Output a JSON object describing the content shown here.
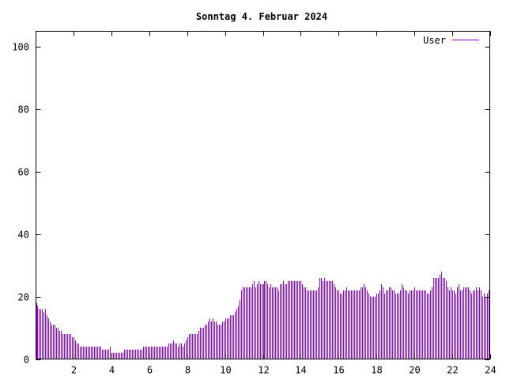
{
  "chart_data": {
    "type": "bar",
    "title": "Sonntag 4. Februar 2024",
    "xlabel": "",
    "ylabel": "",
    "xlim": [
      0,
      24
    ],
    "ylim": [
      0,
      105
    ],
    "x_ticks": [
      2,
      4,
      6,
      8,
      10,
      12,
      14,
      16,
      18,
      20,
      22,
      24
    ],
    "x_tick_labels": [
      "2",
      "4",
      "6",
      "8",
      "10",
      "12",
      "14",
      "16",
      "18",
      "20",
      "22",
      "24"
    ],
    "y_ticks": [
      0,
      20,
      40,
      60,
      80,
      100
    ],
    "y_tick_labels": [
      "0",
      "20",
      "40",
      "60",
      "80",
      "100"
    ],
    "grid": false,
    "legend": "top-right",
    "series": [
      {
        "name": "User",
        "color": "#9400d3",
        "step_minutes": 5,
        "values": [
          18,
          17,
          16,
          16,
          16,
          15,
          16,
          14,
          13,
          12,
          11,
          11,
          11,
          10,
          10,
          9,
          9,
          8,
          8,
          8,
          8,
          8,
          8,
          7,
          7,
          6,
          5,
          5,
          4,
          4,
          4,
          4,
          4,
          4,
          4,
          4,
          4,
          4,
          4,
          4,
          4,
          4,
          3,
          3,
          3,
          3,
          3,
          4,
          2,
          2,
          2,
          2,
          2,
          2,
          2,
          2,
          3,
          3,
          3,
          3,
          3,
          3,
          3,
          3,
          3,
          3,
          3,
          3,
          4,
          4,
          4,
          4,
          4,
          4,
          4,
          4,
          4,
          4,
          4,
          4,
          4,
          4,
          4,
          4,
          5,
          5,
          5,
          6,
          5,
          5,
          4,
          5,
          5,
          4,
          5,
          6,
          7,
          8,
          8,
          8,
          8,
          8,
          8,
          9,
          10,
          10,
          10,
          11,
          11,
          12,
          13,
          12,
          13,
          12,
          12,
          11,
          11,
          11,
          12,
          12,
          13,
          13,
          13,
          14,
          14,
          14,
          15,
          16,
          17,
          19,
          22,
          23,
          23,
          23,
          23,
          23,
          23,
          24,
          25,
          23,
          24,
          25,
          24,
          24,
          24,
          25,
          25,
          24,
          23,
          24,
          23,
          23,
          23,
          23,
          22,
          24,
          24,
          25,
          24,
          24,
          25,
          25,
          25,
          25,
          25,
          25,
          25,
          25,
          25,
          24,
          23,
          23,
          22,
          22,
          22,
          22,
          22,
          22,
          22,
          23,
          26,
          26,
          25,
          26,
          25,
          25,
          25,
          25,
          25,
          24,
          23,
          22,
          22,
          21,
          21,
          22,
          22,
          23,
          22,
          22,
          22,
          22,
          22,
          22,
          22,
          22,
          23,
          23,
          24,
          23,
          22,
          21,
          20,
          20,
          20,
          20,
          21,
          21,
          22,
          24,
          23,
          21,
          22,
          22,
          23,
          23,
          22,
          22,
          21,
          21,
          21,
          22,
          24,
          23,
          22,
          22,
          21,
          22,
          22,
          22,
          23,
          22,
          22,
          22,
          22,
          22,
          22,
          22,
          21,
          21,
          22,
          23,
          26,
          26,
          26,
          26,
          27,
          28,
          26,
          26,
          25,
          23,
          22,
          23,
          22,
          22,
          21,
          23,
          24,
          22,
          22,
          23,
          23,
          23,
          23,
          22,
          21,
          22,
          22,
          23,
          22,
          23,
          22,
          20,
          21,
          20,
          21,
          22
        ]
      }
    ]
  }
}
